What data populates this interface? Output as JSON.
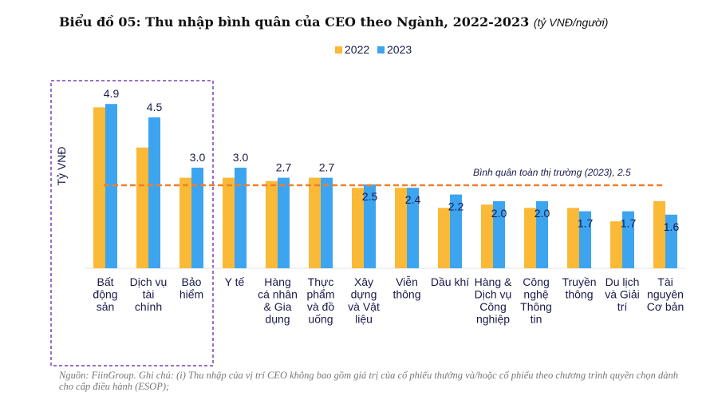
{
  "title": "Biểu đồ 05: Thu nhập bình quân của CEO theo Ngành, 2022-2023",
  "title_unit": "(tỷ VNĐ/người)",
  "note": "Nguồn: FiinGroup. Ghi chú: (i) Thu nhập của vị trí CEO không bao gồm giá trị của cổ phiếu thưởng và/hoặc cổ phiếu theo chương trình quyền chọn dành cho cấp điều hành (ESOP);",
  "chart_data": {
    "type": "bar",
    "ylabel": "Tỷ VNĐ",
    "legend_position": "top-center",
    "grid": false,
    "ylim": [
      0,
      5.2
    ],
    "categories": [
      [
        "Bất",
        "động",
        "sản"
      ],
      [
        "Dịch vụ",
        "tài",
        "chính"
      ],
      [
        "Bảo",
        "hiểm"
      ],
      [
        "Y tế"
      ],
      [
        "Hàng",
        "cá nhân",
        "& Gia",
        "dụng"
      ],
      [
        "Thực",
        "phẩm",
        "và đồ",
        "uống"
      ],
      [
        "Xây",
        "dựng",
        "và Vật",
        "liệu"
      ],
      [
        "Viễn",
        "thông"
      ],
      [
        "Dầu khí"
      ],
      [
        "Hàng &",
        "Dịch vụ",
        "Công",
        "nghiệp"
      ],
      [
        "Công",
        "nghệ",
        "Thông",
        "tin"
      ],
      [
        "Truyền",
        "thông"
      ],
      [
        "Du lịch",
        "và Giải",
        "trí"
      ],
      [
        "Tài",
        "nguyên",
        "Cơ bản"
      ]
    ],
    "series": [
      {
        "name": "2022",
        "color": "#FBB938",
        "values": [
          4.8,
          3.6,
          2.7,
          2.7,
          2.6,
          2.7,
          2.4,
          2.4,
          1.8,
          1.9,
          1.8,
          1.8,
          1.4,
          2.0
        ]
      },
      {
        "name": "2023",
        "color": "#3DA5F0",
        "values": [
          4.9,
          4.5,
          3.0,
          3.0,
          2.7,
          2.7,
          2.5,
          2.4,
          2.2,
          2.0,
          2.0,
          1.7,
          1.7,
          1.6
        ],
        "labels": [
          "4.9",
          "4.5",
          "3.0",
          "3.0",
          "2.7",
          "2.7",
          "2.5",
          "2.4",
          "2.2",
          "2.0",
          "2.0",
          "1.7",
          "1.7",
          "1.6"
        ]
      }
    ],
    "reference_line": {
      "label": "Bình quân toàn thị trường (2023), 2.5",
      "value": 2.5,
      "color": "#F07F2B"
    },
    "highlight_box_color": "#7B3FB5"
  }
}
